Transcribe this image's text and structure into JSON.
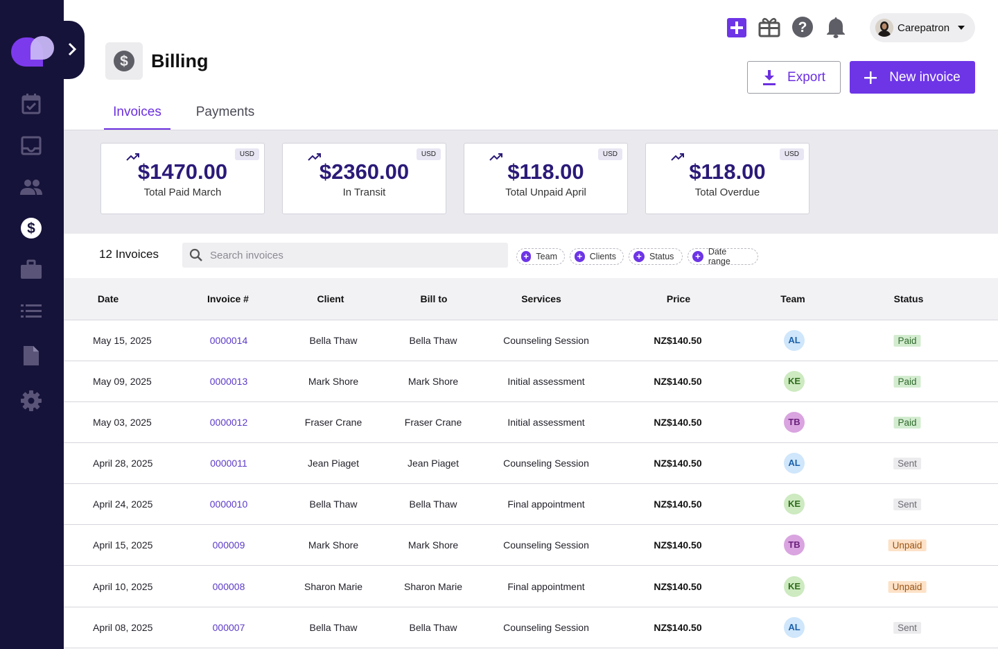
{
  "user": {
    "name": "Carepatron"
  },
  "page": {
    "title": "Billing"
  },
  "actions": {
    "export_label": "Export",
    "new_invoice_label": "New invoice"
  },
  "tabs": [
    {
      "label": "Invoices",
      "active": true
    },
    {
      "label": "Payments",
      "active": false
    }
  ],
  "stats": [
    {
      "currency": "USD",
      "amount": "$1470.00",
      "label": "Total Paid March"
    },
    {
      "currency": "USD",
      "amount": "$2360.00",
      "label": "In Transit"
    },
    {
      "currency": "USD",
      "amount": "$118.00",
      "label": "Total Unpaid April"
    },
    {
      "currency": "USD",
      "amount": "$118.00",
      "label": "Total Overdue"
    }
  ],
  "toolbar": {
    "count_label": "12 Invoices",
    "search_placeholder": "Search invoices",
    "filters": [
      "Team",
      "Clients",
      "Status",
      "Date range"
    ]
  },
  "table": {
    "columns": [
      "Date",
      "Invoice #",
      "Client",
      "Bill to",
      "Services",
      "Price",
      "Team",
      "Status"
    ],
    "rows": [
      {
        "date": "May 15, 2025",
        "invoice": "0000014",
        "client": "Bella Thaw",
        "bill_to": "Bella Thaw",
        "service": "Counseling Session",
        "price": "NZ$140.50",
        "team": "AL",
        "status": "Paid"
      },
      {
        "date": "May 09, 2025",
        "invoice": "0000013",
        "client": "Mark Shore",
        "bill_to": "Mark Shore",
        "service": "Initial assessment",
        "price": "NZ$140.50",
        "team": "KE",
        "status": "Paid"
      },
      {
        "date": "May 03, 2025",
        "invoice": "0000012",
        "client": "Fraser Crane",
        "bill_to": "Fraser Crane",
        "service": "Initial assessment",
        "price": "NZ$140.50",
        "team": "TB",
        "status": "Paid"
      },
      {
        "date": "April 28, 2025",
        "invoice": "0000011",
        "client": "Jean Piaget",
        "bill_to": "Jean Piaget",
        "service": "Counseling Session",
        "price": "NZ$140.50",
        "team": "AL",
        "status": "Sent"
      },
      {
        "date": "April 24, 2025",
        "invoice": "0000010",
        "client": "Bella Thaw",
        "bill_to": "Bella Thaw",
        "service": "Final appointment",
        "price": "NZ$140.50",
        "team": "KE",
        "status": "Sent"
      },
      {
        "date": "April 15, 2025",
        "invoice": "000009",
        "client": "Mark Shore",
        "bill_to": "Mark Shore",
        "service": "Counseling Session",
        "price": "NZ$140.50",
        "team": "TB",
        "status": "Unpaid"
      },
      {
        "date": "April 10, 2025",
        "invoice": "000008",
        "client": "Sharon Marie",
        "bill_to": "Sharon Marie",
        "service": "Final appointment",
        "price": "NZ$140.50",
        "team": "KE",
        "status": "Unpaid"
      },
      {
        "date": "April 08, 2025",
        "invoice": "000007",
        "client": "Bella Thaw",
        "bill_to": "Bella Thaw",
        "service": "Counseling Session",
        "price": "NZ$140.50",
        "team": "AL",
        "status": "Sent"
      }
    ]
  },
  "colors": {
    "brand": "#6d35e6",
    "sidebar": "#16133a",
    "team": {
      "AL": {
        "bg": "#cfe6fb",
        "fg": "#1b5fa8"
      },
      "KE": {
        "bg": "#cdeac0",
        "fg": "#2e6b1c"
      },
      "TB": {
        "bg": "#d9a4e0",
        "fg": "#6a1f7a"
      }
    },
    "status": {
      "Paid": {
        "bg": "#d3ecd0",
        "fg": "#2f6a2b"
      },
      "Sent": {
        "bg": "#ececee",
        "fg": "#6a6a72"
      },
      "Unpaid": {
        "bg": "#fde2c8",
        "fg": "#9a5414"
      }
    }
  },
  "icons": {
    "sidebar": [
      "calendar-icon",
      "inbox-icon",
      "people-icon",
      "billing-icon",
      "briefcase-icon",
      "list-icon",
      "document-icon",
      "settings-icon"
    ],
    "header": [
      "add-icon",
      "gift-icon",
      "help-icon",
      "bell-icon"
    ]
  }
}
